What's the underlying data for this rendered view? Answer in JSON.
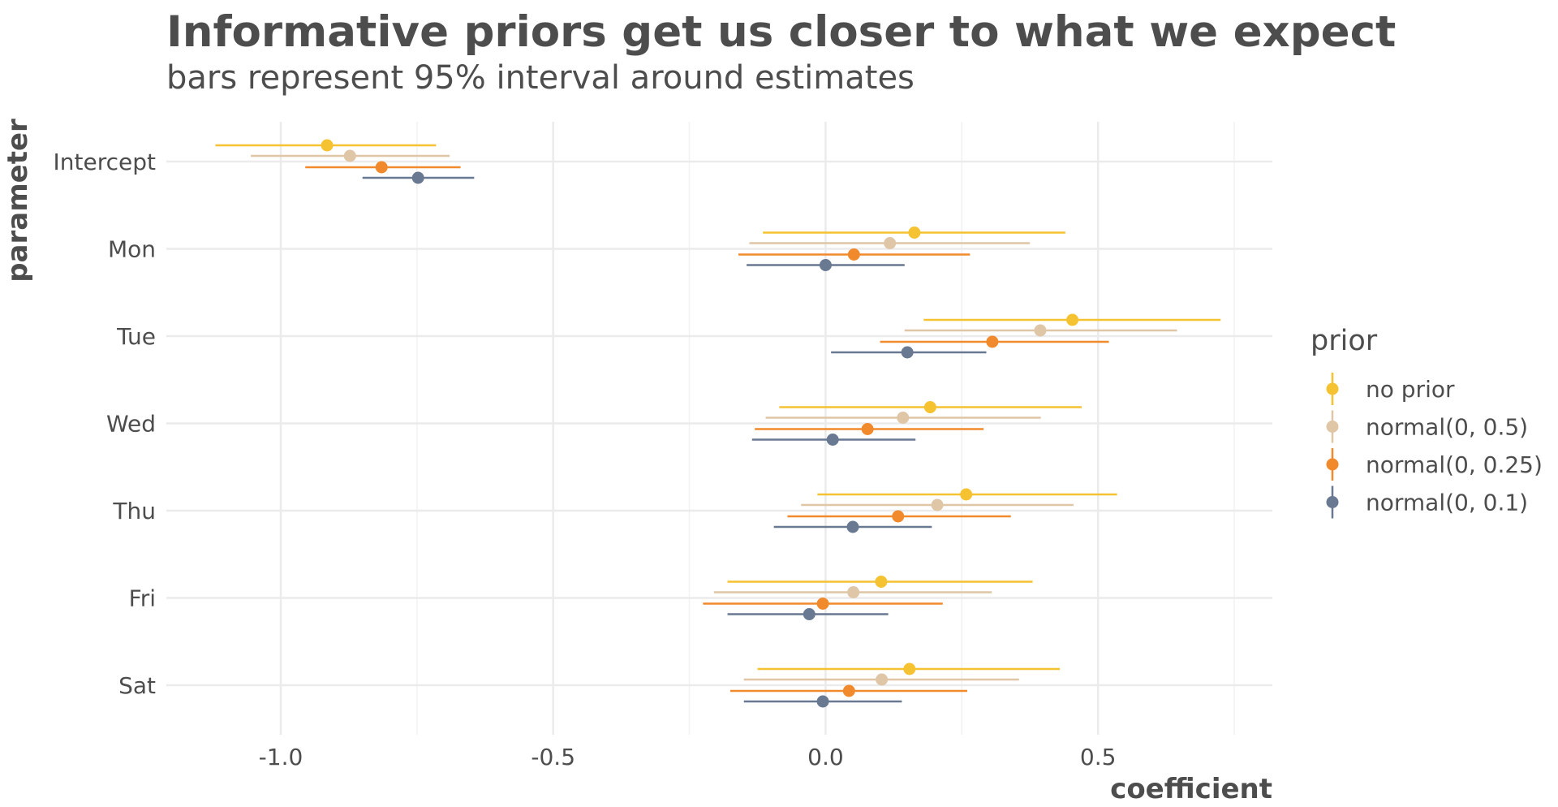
{
  "chart_data": {
    "type": "pointrange",
    "title": "Informative priors get us closer to what we expect",
    "subtitle": "bars represent 95% interval around estimates",
    "xlabel": "coefficient",
    "ylabel": "parameter",
    "xlim": [
      -1.21,
      0.82
    ],
    "x_ticks": [
      -1.0,
      -0.5,
      0.0,
      0.5
    ],
    "x_tick_labels": [
      "-1.0",
      "-0.5",
      "0.0",
      "0.5"
    ],
    "categories": [
      "Intercept",
      "Mon",
      "Tue",
      "Wed",
      "Thu",
      "Fri",
      "Sat"
    ],
    "legend_title": "prior",
    "legend_position": "right",
    "grid": true,
    "series": [
      {
        "name": "no prior",
        "color": "#f5c232",
        "estimates": [
          -0.915,
          0.163,
          0.453,
          0.192,
          0.258,
          0.102,
          0.154
        ],
        "lower": [
          -1.12,
          -0.115,
          0.18,
          -0.085,
          -0.015,
          -0.18,
          -0.125
        ],
        "upper": [
          -0.715,
          0.44,
          0.725,
          0.47,
          0.535,
          0.38,
          0.43
        ]
      },
      {
        "name": "normal(0, 0.5)",
        "color": "#dfc6a6",
        "estimates": [
          -0.873,
          0.118,
          0.394,
          0.142,
          0.205,
          0.051,
          0.103
        ],
        "lower": [
          -1.055,
          -0.14,
          0.145,
          -0.11,
          -0.045,
          -0.205,
          -0.15
        ],
        "upper": [
          -0.69,
          0.375,
          0.645,
          0.395,
          0.455,
          0.305,
          0.355
        ]
      },
      {
        "name": "normal(0, 0.25)",
        "color": "#f08a2c",
        "estimates": [
          -0.815,
          0.052,
          0.306,
          0.077,
          0.133,
          -0.005,
          0.043
        ],
        "lower": [
          -0.955,
          -0.16,
          0.1,
          -0.13,
          -0.07,
          -0.225,
          -0.175
        ],
        "upper": [
          -0.67,
          0.265,
          0.52,
          0.29,
          0.34,
          0.215,
          0.26
        ]
      },
      {
        "name": "normal(0, 0.1)",
        "color": "#697991",
        "estimates": [
          -0.748,
          0.0,
          0.15,
          0.013,
          0.05,
          -0.03,
          -0.005
        ],
        "lower": [
          -0.85,
          -0.145,
          0.01,
          -0.135,
          -0.095,
          -0.18,
          -0.15
        ],
        "upper": [
          -0.645,
          0.145,
          0.295,
          0.165,
          0.195,
          0.115,
          0.14
        ]
      }
    ]
  }
}
